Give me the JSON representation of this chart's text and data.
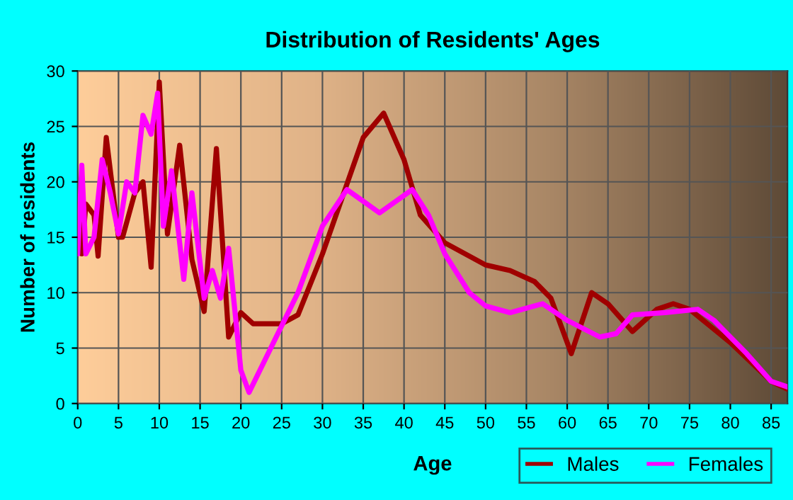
{
  "chart_data": {
    "type": "line",
    "title": "Distribution of Residents' Ages",
    "xlabel": "Age",
    "ylabel": "Number of residents",
    "xlim": [
      0,
      87
    ],
    "ylim": [
      0,
      30
    ],
    "xticks": [
      0,
      5,
      10,
      15,
      20,
      25,
      30,
      35,
      40,
      45,
      50,
      55,
      60,
      65,
      70,
      75,
      80,
      85
    ],
    "yticks": [
      0,
      5,
      10,
      15,
      20,
      25,
      30
    ],
    "grid": true,
    "legend": "bottom right",
    "marker": "none",
    "line_style": "solid",
    "series": [
      {
        "name": "Males",
        "color": "#a00000",
        "x": [
          0,
          0.5,
          1,
          2,
          2.5,
          3.5,
          5,
          5.5,
          7,
          8,
          9,
          10,
          11,
          12.5,
          14,
          15.5,
          17,
          18.5,
          20,
          21.5,
          25,
          27,
          30,
          35,
          37.5,
          40,
          42,
          45,
          50,
          53,
          56,
          58,
          60.5,
          63,
          65,
          68,
          71,
          73,
          75,
          80,
          85,
          87
        ],
        "values": [
          18,
          13.5,
          18,
          17,
          13.3,
          24,
          15,
          15,
          19,
          20,
          12.3,
          29,
          15.3,
          23.3,
          13,
          8.3,
          23,
          6,
          8.2,
          7.2,
          7.2,
          8,
          13.5,
          24,
          26.2,
          22,
          17,
          14.5,
          12.5,
          12,
          11,
          9.5,
          4.5,
          10,
          9,
          6.5,
          8.5,
          9,
          8.5,
          5.5,
          2,
          1.3
        ]
      },
      {
        "name": "Females",
        "color": "#ff00ff",
        "x": [
          0,
          0.5,
          1,
          2,
          3,
          4,
          5,
          6,
          7,
          8,
          9,
          9.8,
          10.5,
          11.5,
          13,
          14,
          15.5,
          16.5,
          17.5,
          18.5,
          20,
          21,
          22,
          24,
          27,
          30,
          33,
          37,
          41,
          43,
          45,
          48,
          50,
          53,
          57,
          60,
          64,
          66,
          68,
          72,
          76,
          78,
          82,
          85,
          87
        ],
        "values": [
          13.5,
          21.5,
          13.5,
          15,
          22,
          19,
          15.3,
          20,
          19,
          26,
          24.3,
          28,
          16,
          21,
          11.2,
          19,
          9.5,
          12,
          9.5,
          14,
          3,
          1,
          2.5,
          5.5,
          10,
          16,
          19.3,
          17.2,
          19.3,
          17,
          13.5,
          10,
          8.8,
          8.2,
          9,
          7.5,
          6,
          6.3,
          8,
          8.2,
          8.5,
          7.5,
          4.5,
          2,
          1.5
        ]
      }
    ]
  }
}
